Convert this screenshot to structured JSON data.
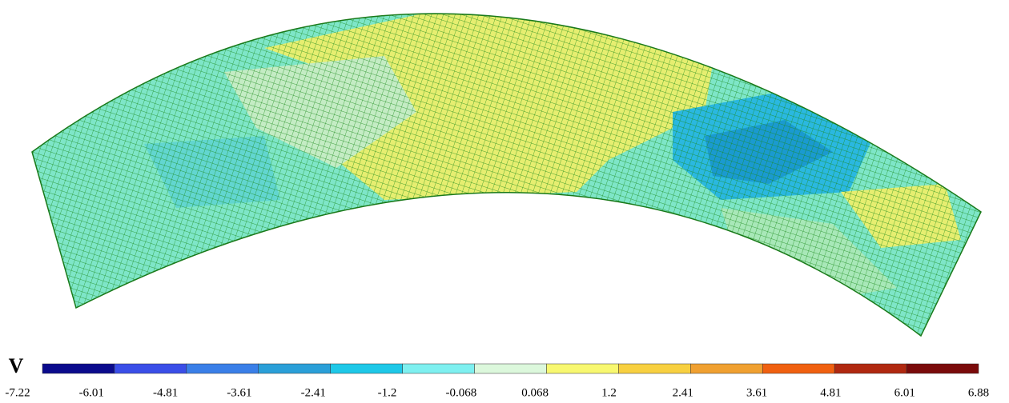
{
  "legend": {
    "title": "V",
    "levels": [
      "-7.22",
      "-6.01",
      "-4.81",
      "-3.61",
      "-2.41",
      "-1.2",
      "-0.068",
      "0.068",
      "1.2",
      "2.41",
      "3.61",
      "4.81",
      "6.01",
      "6.88"
    ],
    "colors": [
      "#0a0a8c",
      "#3a4ee8",
      "#3a7fe8",
      "#2a9fd8",
      "#1ec8e8",
      "#7ef0f0",
      "#dcf8dc",
      "#f8f870",
      "#f8d040",
      "#f0a030",
      "#f06010",
      "#b02810",
      "#7a0a0a"
    ]
  }
}
